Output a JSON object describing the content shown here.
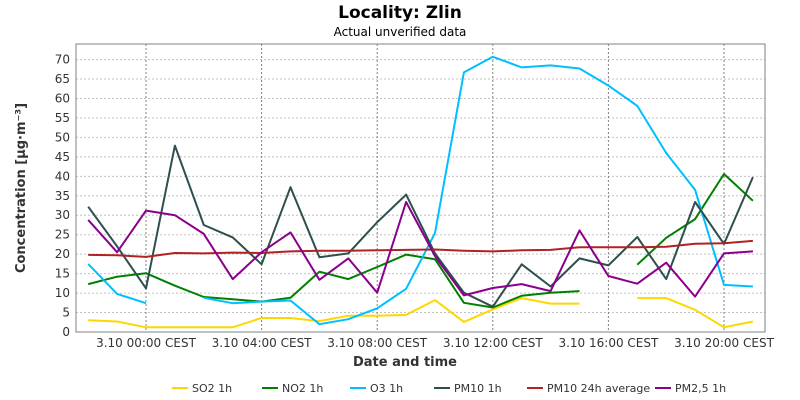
{
  "chart_data": {
    "type": "line",
    "title": "Locality: Zlin",
    "subtitle": "Actual unverified data",
    "xlabel": "Date and time",
    "ylabel": "Concentration [µg·m⁻³]",
    "ylim": [
      0,
      74
    ],
    "yticks": [
      0,
      5,
      10,
      15,
      20,
      25,
      30,
      35,
      40,
      45,
      50,
      55,
      60,
      65,
      70
    ],
    "grid": true,
    "legend_position": "bottom",
    "x": [
      "3.9 22:00",
      "3.9 23:00",
      "3.10 00:00",
      "3.10 01:00",
      "3.10 02:00",
      "3.10 03:00",
      "3.10 04:00",
      "3.10 05:00",
      "3.10 06:00",
      "3.10 07:00",
      "3.10 08:00",
      "3.10 09:00",
      "3.10 10:00",
      "3.10 11:00",
      "3.10 12:00",
      "3.10 13:00",
      "3.10 14:00",
      "3.10 15:00",
      "3.10 16:00",
      "3.10 17:00",
      "3.10 18:00",
      "3.10 19:00",
      "3.10 20:00",
      "3.10 21:00"
    ],
    "xticks": [
      {
        "index": 2,
        "label": "3.10 00:00 CEST"
      },
      {
        "index": 6,
        "label": "3.10 04:00 CEST"
      },
      {
        "index": 10,
        "label": "3.10 08:00 CEST"
      },
      {
        "index": 14,
        "label": "3.10 12:00 CEST"
      },
      {
        "index": 18,
        "label": "3.10 16:00 CEST"
      },
      {
        "index": 22,
        "label": "3.10 20:00 CEST"
      }
    ],
    "series": [
      {
        "name": "SO2 1h",
        "color": "#ffd700",
        "values": [
          3.0,
          2.7,
          1.2,
          1.2,
          1.2,
          1.2,
          3.6,
          3.6,
          2.8,
          4.2,
          4.2,
          4.4,
          8.2,
          2.6,
          5.8,
          8.7,
          7.3,
          7.3,
          null,
          8.7,
          8.7,
          5.7,
          1.2,
          2.7
        ]
      },
      {
        "name": "NO2 1h",
        "color": "#008000",
        "values": [
          12.3,
          14.2,
          15.1,
          11.9,
          9.0,
          8.4,
          7.8,
          8.8,
          15.5,
          13.6,
          16.7,
          19.9,
          18.7,
          7.5,
          6.3,
          9.3,
          10.1,
          10.5,
          null,
          17.3,
          24.2,
          29.0,
          40.6,
          33.7
        ]
      },
      {
        "name": "O3 1h",
        "color": "#00bfff",
        "values": [
          17.5,
          9.8,
          7.4,
          null,
          8.8,
          7.4,
          7.8,
          8.1,
          2.0,
          3.3,
          6.1,
          11.1,
          25.4,
          66.7,
          70.7,
          68.0,
          68.5,
          67.7,
          63.3,
          58.1,
          46.0,
          36.5,
          12.1,
          11.7
        ]
      },
      {
        "name": "PM10 1h",
        "color": "#2f4f4f",
        "values": [
          32.2,
          22.0,
          11.2,
          47.9,
          27.5,
          24.3,
          17.4,
          37.2,
          19.2,
          20.2,
          28.2,
          35.3,
          20.2,
          10.1,
          6.5,
          17.4,
          11.7,
          18.9,
          17.1,
          24.4,
          13.6,
          33.4,
          22.6,
          39.8
        ]
      },
      {
        "name": "PM10 24h average",
        "color": "#b22222",
        "values": [
          19.8,
          19.7,
          19.3,
          20.3,
          20.2,
          20.4,
          20.3,
          20.7,
          20.9,
          20.9,
          21.0,
          21.1,
          21.2,
          20.9,
          20.7,
          21.0,
          21.1,
          21.8,
          21.8,
          21.8,
          21.9,
          22.7,
          22.8,
          23.4
        ]
      },
      {
        "name": "PM2,5 1h",
        "color": "#8b008b",
        "values": [
          28.8,
          20.5,
          31.2,
          30.0,
          25.2,
          13.6,
          20.5,
          25.6,
          13.4,
          18.9,
          10.1,
          33.4,
          19.5,
          9.4,
          11.3,
          12.3,
          10.5,
          26.1,
          14.4,
          12.4,
          17.8,
          9.1,
          20.2,
          20.7
        ]
      }
    ]
  }
}
